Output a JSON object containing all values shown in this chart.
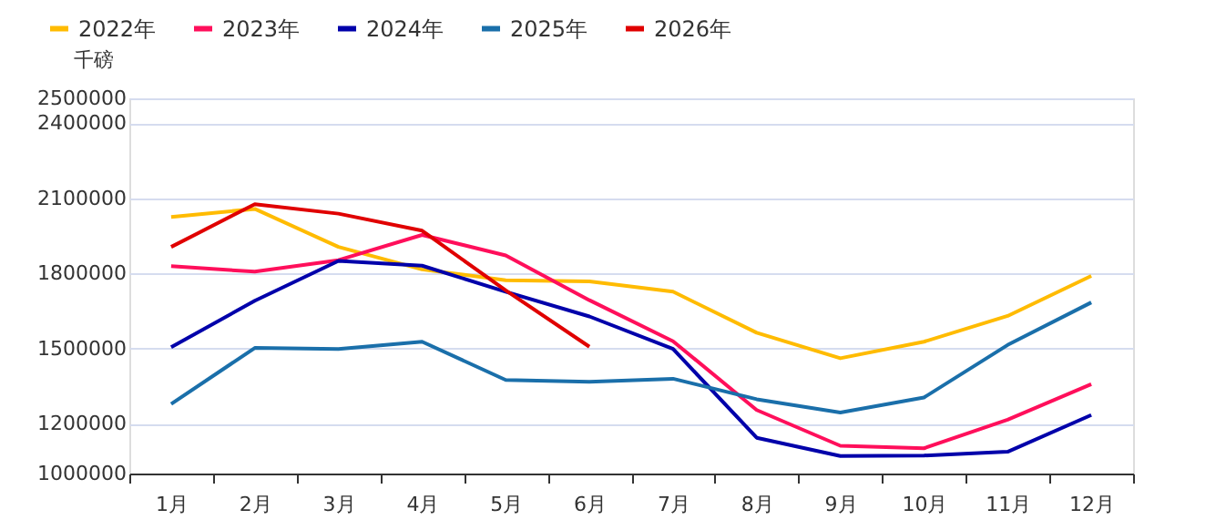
{
  "chart_data": {
    "type": "line",
    "ylabel": "千磅",
    "categories": [
      "1月",
      "2月",
      "3月",
      "4月",
      "5月",
      "6月",
      "7月",
      "8月",
      "9月",
      "10月",
      "11月",
      "12月"
    ],
    "series": [
      {
        "name": "2022年",
        "color": "#ffbb00",
        "values": [
          2026000,
          2058000,
          1906000,
          1816000,
          1773000,
          1768000,
          1727000,
          1563000,
          1461000,
          1527000,
          1630000,
          1790000
        ]
      },
      {
        "name": "2023年",
        "color": "#ff0f5b",
        "values": [
          1829000,
          1807000,
          1853000,
          1954000,
          1872000,
          1693000,
          1529000,
          1254000,
          1111000,
          1101000,
          1215000,
          1357000
        ]
      },
      {
        "name": "2024年",
        "color": "#0000aa",
        "values": [
          1505000,
          1691000,
          1850000,
          1831000,
          1727000,
          1628000,
          1498000,
          1143000,
          1070000,
          1072000,
          1087000,
          1234000
        ]
      },
      {
        "name": "2025年",
        "color": "#1a6faa",
        "values": [
          1278000,
          1502000,
          1498000,
          1527000,
          1374000,
          1367000,
          1379000,
          1297000,
          1244000,
          1304000,
          1514000,
          1684000
        ]
      },
      {
        "name": "2026年",
        "color": "#e00000",
        "values": [
          1906000,
          2077000,
          2039000,
          1971000,
          1732000,
          1507000,
          null,
          null,
          null,
          null,
          null,
          null
        ]
      }
    ],
    "ylim": [
      1000000,
      2500000
    ],
    "yticks": [
      1000000,
      1200000,
      1500000,
      1800000,
      2100000,
      2400000,
      2500000
    ],
    "grid": "y",
    "legend": "top left",
    "marker": "none",
    "line_style": "solid"
  }
}
